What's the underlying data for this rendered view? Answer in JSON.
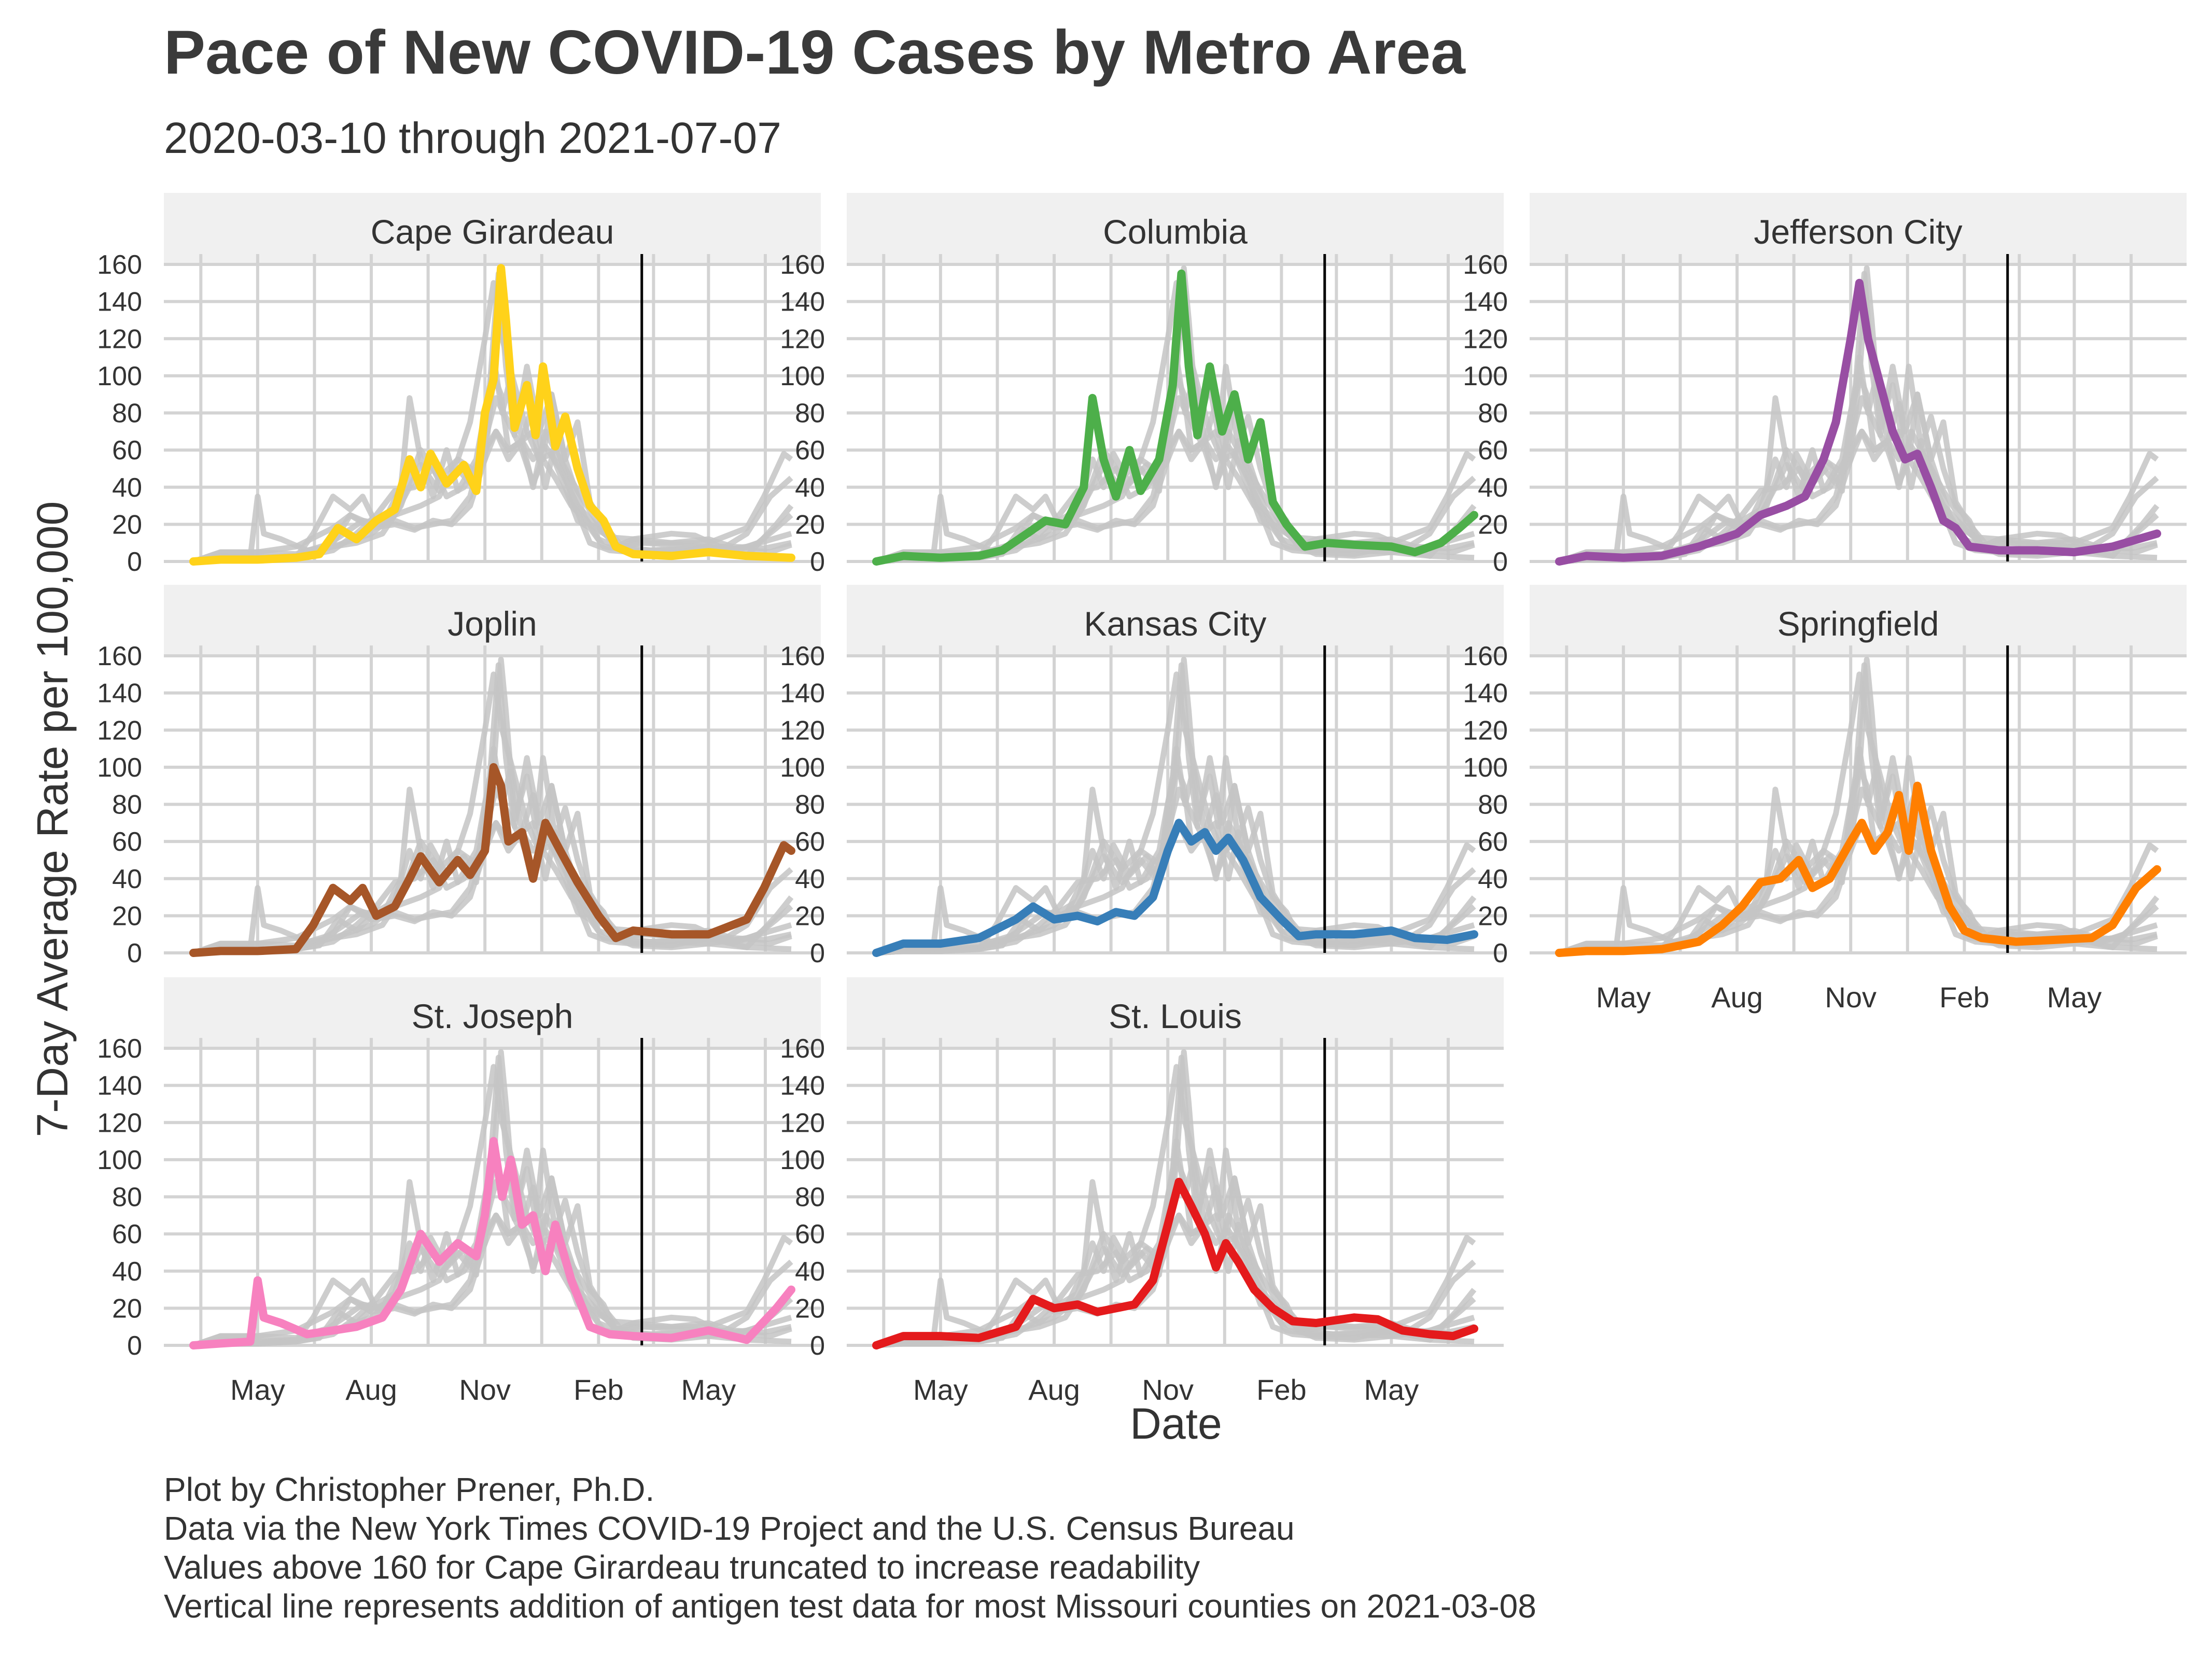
{
  "chart_data": {
    "type": "line",
    "title": "Pace of New COVID-19 Cases by Metro Area",
    "subtitle": "2020-03-10 through 2021-07-07",
    "xlabel": "Date",
    "ylabel": "7-Day Average Rate per 100,000",
    "xlim": [
      "2020-03-10",
      "2021-07-07"
    ],
    "ylim": [
      0,
      160
    ],
    "y_ticks": [
      0,
      20,
      40,
      60,
      80,
      100,
      120,
      140,
      160
    ],
    "x_ticks": [
      {
        "date": "2020-05-01",
        "label": "May"
      },
      {
        "date": "2020-08-01",
        "label": "Aug"
      },
      {
        "date": "2020-11-01",
        "label": "Nov"
      },
      {
        "date": "2021-02-01",
        "label": "Feb"
      },
      {
        "date": "2021-05-01",
        "label": "May"
      }
    ],
    "grid": true,
    "layout": "facet-wrap 3 columns",
    "background_series_color": "#c4c4c4",
    "reference_line": {
      "date": "2021-03-08",
      "color": "#000000"
    },
    "series": [
      {
        "name": "Cape Girardeau",
        "color": "#ffd21a",
        "points": [
          [
            "2020-03-10",
            0
          ],
          [
            "2020-04-01",
            1
          ],
          [
            "2020-05-01",
            1
          ],
          [
            "2020-06-01",
            2
          ],
          [
            "2020-06-20",
            4
          ],
          [
            "2020-07-05",
            18
          ],
          [
            "2020-07-20",
            12
          ],
          [
            "2020-08-05",
            22
          ],
          [
            "2020-08-20",
            28
          ],
          [
            "2020-09-01",
            55
          ],
          [
            "2020-09-10",
            40
          ],
          [
            "2020-09-18",
            58
          ],
          [
            "2020-10-01",
            42
          ],
          [
            "2020-10-15",
            52
          ],
          [
            "2020-10-25",
            38
          ],
          [
            "2020-11-01",
            80
          ],
          [
            "2020-11-08",
            98
          ],
          [
            "2020-11-14",
            158
          ],
          [
            "2020-11-18",
            130
          ],
          [
            "2020-11-25",
            72
          ],
          [
            "2020-12-05",
            95
          ],
          [
            "2020-12-12",
            68
          ],
          [
            "2020-12-18",
            105
          ],
          [
            "2020-12-28",
            62
          ],
          [
            "2021-01-05",
            78
          ],
          [
            "2021-01-15",
            50
          ],
          [
            "2021-01-25",
            30
          ],
          [
            "2021-02-05",
            22
          ],
          [
            "2021-02-15",
            8
          ],
          [
            "2021-03-01",
            4
          ],
          [
            "2021-04-01",
            3
          ],
          [
            "2021-05-01",
            5
          ],
          [
            "2021-06-01",
            3
          ],
          [
            "2021-07-07",
            2
          ]
        ]
      },
      {
        "name": "Columbia",
        "color": "#4daf4a",
        "points": [
          [
            "2020-03-10",
            0
          ],
          [
            "2020-04-01",
            3
          ],
          [
            "2020-05-01",
            2
          ],
          [
            "2020-06-01",
            3
          ],
          [
            "2020-06-20",
            6
          ],
          [
            "2020-07-10",
            15
          ],
          [
            "2020-07-25",
            22
          ],
          [
            "2020-08-10",
            20
          ],
          [
            "2020-08-25",
            40
          ],
          [
            "2020-09-01",
            88
          ],
          [
            "2020-09-10",
            55
          ],
          [
            "2020-09-20",
            35
          ],
          [
            "2020-10-01",
            60
          ],
          [
            "2020-10-10",
            38
          ],
          [
            "2020-10-25",
            55
          ],
          [
            "2020-11-05",
            95
          ],
          [
            "2020-11-12",
            155
          ],
          [
            "2020-11-18",
            105
          ],
          [
            "2020-11-25",
            68
          ],
          [
            "2020-12-05",
            105
          ],
          [
            "2020-12-15",
            70
          ],
          [
            "2020-12-25",
            90
          ],
          [
            "2021-01-05",
            55
          ],
          [
            "2021-01-15",
            75
          ],
          [
            "2021-01-25",
            32
          ],
          [
            "2021-02-05",
            20
          ],
          [
            "2021-02-20",
            8
          ],
          [
            "2021-03-10",
            10
          ],
          [
            "2021-04-01",
            9
          ],
          [
            "2021-05-01",
            8
          ],
          [
            "2021-05-20",
            5
          ],
          [
            "2021-06-10",
            10
          ],
          [
            "2021-06-25",
            18
          ],
          [
            "2021-07-07",
            25
          ]
        ]
      },
      {
        "name": "Jefferson City",
        "color": "#984ea3",
        "points": [
          [
            "2020-03-10",
            0
          ],
          [
            "2020-04-01",
            3
          ],
          [
            "2020-05-01",
            2
          ],
          [
            "2020-06-01",
            3
          ],
          [
            "2020-07-01",
            8
          ],
          [
            "2020-08-01",
            15
          ],
          [
            "2020-08-20",
            25
          ],
          [
            "2020-09-10",
            30
          ],
          [
            "2020-09-25",
            35
          ],
          [
            "2020-10-10",
            55
          ],
          [
            "2020-10-20",
            75
          ],
          [
            "2020-11-01",
            120
          ],
          [
            "2020-11-08",
            150
          ],
          [
            "2020-11-15",
            120
          ],
          [
            "2020-11-25",
            95
          ],
          [
            "2020-12-05",
            70
          ],
          [
            "2020-12-15",
            55
          ],
          [
            "2020-12-25",
            58
          ],
          [
            "2021-01-05",
            40
          ],
          [
            "2021-01-15",
            22
          ],
          [
            "2021-01-25",
            18
          ],
          [
            "2021-02-05",
            8
          ],
          [
            "2021-03-01",
            6
          ],
          [
            "2021-04-01",
            6
          ],
          [
            "2021-05-01",
            5
          ],
          [
            "2021-06-01",
            8
          ],
          [
            "2021-07-07",
            15
          ]
        ]
      },
      {
        "name": "Joplin",
        "color": "#a65628",
        "points": [
          [
            "2020-03-10",
            0
          ],
          [
            "2020-04-01",
            1
          ],
          [
            "2020-05-01",
            1
          ],
          [
            "2020-06-01",
            2
          ],
          [
            "2020-06-15",
            15
          ],
          [
            "2020-07-01",
            35
          ],
          [
            "2020-07-15",
            28
          ],
          [
            "2020-07-25",
            35
          ],
          [
            "2020-08-05",
            20
          ],
          [
            "2020-08-20",
            25
          ],
          [
            "2020-09-01",
            40
          ],
          [
            "2020-09-10",
            52
          ],
          [
            "2020-09-25",
            38
          ],
          [
            "2020-10-10",
            50
          ],
          [
            "2020-10-20",
            42
          ],
          [
            "2020-11-01",
            55
          ],
          [
            "2020-11-08",
            100
          ],
          [
            "2020-11-14",
            90
          ],
          [
            "2020-11-20",
            60
          ],
          [
            "2020-12-01",
            65
          ],
          [
            "2020-12-10",
            40
          ],
          [
            "2020-12-20",
            70
          ],
          [
            "2021-01-01",
            55
          ],
          [
            "2021-01-15",
            38
          ],
          [
            "2021-02-01",
            20
          ],
          [
            "2021-02-15",
            8
          ],
          [
            "2021-03-01",
            12
          ],
          [
            "2021-04-01",
            10
          ],
          [
            "2021-05-01",
            10
          ],
          [
            "2021-06-01",
            18
          ],
          [
            "2021-06-15",
            35
          ],
          [
            "2021-07-01",
            58
          ],
          [
            "2021-07-07",
            55
          ]
        ]
      },
      {
        "name": "Kansas City",
        "color": "#377eb8",
        "points": [
          [
            "2020-03-10",
            0
          ],
          [
            "2020-04-01",
            5
          ],
          [
            "2020-05-01",
            5
          ],
          [
            "2020-06-01",
            8
          ],
          [
            "2020-07-01",
            18
          ],
          [
            "2020-07-15",
            25
          ],
          [
            "2020-08-01",
            18
          ],
          [
            "2020-08-20",
            20
          ],
          [
            "2020-09-05",
            17
          ],
          [
            "2020-09-20",
            22
          ],
          [
            "2020-10-05",
            20
          ],
          [
            "2020-10-20",
            30
          ],
          [
            "2020-11-01",
            55
          ],
          [
            "2020-11-10",
            70
          ],
          [
            "2020-11-20",
            60
          ],
          [
            "2020-12-01",
            65
          ],
          [
            "2020-12-10",
            55
          ],
          [
            "2020-12-20",
            62
          ],
          [
            "2021-01-01",
            50
          ],
          [
            "2021-01-15",
            30
          ],
          [
            "2021-02-01",
            18
          ],
          [
            "2021-02-15",
            9
          ],
          [
            "2021-03-01",
            10
          ],
          [
            "2021-04-01",
            10
          ],
          [
            "2021-05-01",
            12
          ],
          [
            "2021-05-20",
            8
          ],
          [
            "2021-06-15",
            7
          ],
          [
            "2021-07-07",
            10
          ]
        ]
      },
      {
        "name": "Springfield",
        "color": "#ff7f00",
        "points": [
          [
            "2020-03-10",
            0
          ],
          [
            "2020-04-01",
            1
          ],
          [
            "2020-05-01",
            1
          ],
          [
            "2020-06-01",
            2
          ],
          [
            "2020-07-01",
            6
          ],
          [
            "2020-07-20",
            15
          ],
          [
            "2020-08-05",
            25
          ],
          [
            "2020-08-20",
            38
          ],
          [
            "2020-09-05",
            40
          ],
          [
            "2020-09-20",
            50
          ],
          [
            "2020-10-01",
            35
          ],
          [
            "2020-10-15",
            40
          ],
          [
            "2020-11-01",
            60
          ],
          [
            "2020-11-10",
            70
          ],
          [
            "2020-11-20",
            55
          ],
          [
            "2020-12-01",
            65
          ],
          [
            "2020-12-10",
            85
          ],
          [
            "2020-12-18",
            55
          ],
          [
            "2020-12-25",
            90
          ],
          [
            "2021-01-05",
            55
          ],
          [
            "2021-01-20",
            25
          ],
          [
            "2021-02-01",
            12
          ],
          [
            "2021-02-15",
            8
          ],
          [
            "2021-03-15",
            6
          ],
          [
            "2021-04-15",
            7
          ],
          [
            "2021-05-15",
            8
          ],
          [
            "2021-06-01",
            15
          ],
          [
            "2021-06-20",
            35
          ],
          [
            "2021-07-07",
            45
          ]
        ]
      },
      {
        "name": "St. Joseph",
        "color": "#f781bf",
        "points": [
          [
            "2020-03-10",
            0
          ],
          [
            "2020-04-01",
            1
          ],
          [
            "2020-04-25",
            2
          ],
          [
            "2020-05-01",
            35
          ],
          [
            "2020-05-06",
            15
          ],
          [
            "2020-05-20",
            12
          ],
          [
            "2020-06-10",
            6
          ],
          [
            "2020-07-01",
            8
          ],
          [
            "2020-07-20",
            10
          ],
          [
            "2020-08-10",
            15
          ],
          [
            "2020-08-25",
            30
          ],
          [
            "2020-09-10",
            60
          ],
          [
            "2020-09-25",
            45
          ],
          [
            "2020-10-10",
            55
          ],
          [
            "2020-10-25",
            48
          ],
          [
            "2020-11-01",
            70
          ],
          [
            "2020-11-08",
            110
          ],
          [
            "2020-11-15",
            80
          ],
          [
            "2020-11-22",
            100
          ],
          [
            "2020-12-01",
            65
          ],
          [
            "2020-12-10",
            70
          ],
          [
            "2020-12-20",
            40
          ],
          [
            "2020-12-28",
            65
          ],
          [
            "2021-01-10",
            35
          ],
          [
            "2021-01-25",
            10
          ],
          [
            "2021-02-10",
            6
          ],
          [
            "2021-03-01",
            5
          ],
          [
            "2021-04-01",
            4
          ],
          [
            "2021-05-01",
            8
          ],
          [
            "2021-06-01",
            3
          ],
          [
            "2021-06-25",
            20
          ],
          [
            "2021-07-07",
            30
          ]
        ]
      },
      {
        "name": "St. Louis",
        "color": "#e41a1c",
        "points": [
          [
            "2020-03-10",
            0
          ],
          [
            "2020-04-01",
            5
          ],
          [
            "2020-05-01",
            5
          ],
          [
            "2020-06-01",
            4
          ],
          [
            "2020-07-01",
            10
          ],
          [
            "2020-07-15",
            25
          ],
          [
            "2020-08-01",
            20
          ],
          [
            "2020-08-20",
            22
          ],
          [
            "2020-09-05",
            18
          ],
          [
            "2020-09-20",
            20
          ],
          [
            "2020-10-05",
            22
          ],
          [
            "2020-10-20",
            35
          ],
          [
            "2020-11-01",
            65
          ],
          [
            "2020-11-10",
            88
          ],
          [
            "2020-11-20",
            75
          ],
          [
            "2020-12-01",
            60
          ],
          [
            "2020-12-10",
            42
          ],
          [
            "2020-12-18",
            55
          ],
          [
            "2020-12-28",
            45
          ],
          [
            "2021-01-10",
            30
          ],
          [
            "2021-01-25",
            20
          ],
          [
            "2021-02-10",
            13
          ],
          [
            "2021-03-01",
            12
          ],
          [
            "2021-04-01",
            15
          ],
          [
            "2021-04-20",
            14
          ],
          [
            "2021-05-10",
            8
          ],
          [
            "2021-06-01",
            6
          ],
          [
            "2021-06-20",
            5
          ],
          [
            "2021-07-07",
            9
          ]
        ]
      }
    ]
  },
  "caption": [
    "Plot by Christopher Prener, Ph.D.",
    "Data via the New York Times COVID-19 Project and the U.S. Census Bureau",
    "Values above 160 for Cape Girardeau truncated to increase readability",
    "Vertical line represents addition of antigen test data for most Missouri counties on 2021-03-08"
  ]
}
